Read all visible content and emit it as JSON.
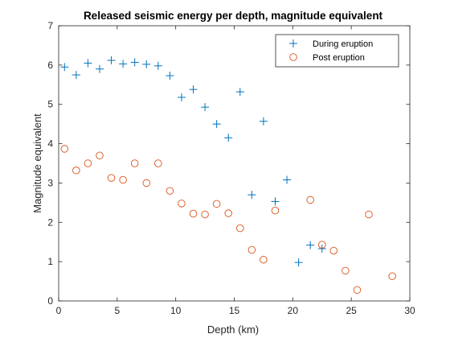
{
  "chart_data": {
    "type": "scatter",
    "title": "Released seismic energy per depth, magnitude equivalent",
    "xlabel": "Depth (km)",
    "ylabel": "Magnitude equivalent",
    "xlim": [
      0,
      30
    ],
    "ylim": [
      0,
      7
    ],
    "xticks": [
      0,
      5,
      10,
      15,
      20,
      25,
      30
    ],
    "yticks": [
      0,
      1,
      2,
      3,
      4,
      5,
      6,
      7
    ],
    "grid": false,
    "legend_position": "top-right",
    "series": [
      {
        "name": "During eruption",
        "marker": "plus",
        "color": "#0072BD",
        "x": [
          0.5,
          1.5,
          2.5,
          3.5,
          4.5,
          5.5,
          6.5,
          7.5,
          8.5,
          9.5,
          10.5,
          11.5,
          12.5,
          13.5,
          14.5,
          15.5,
          16.5,
          17.5,
          18.5,
          19.5,
          20.5,
          21.5,
          22.5
        ],
        "y": [
          5.95,
          5.75,
          6.05,
          5.9,
          6.12,
          6.03,
          6.07,
          6.02,
          5.98,
          5.73,
          5.18,
          5.38,
          4.93,
          4.5,
          4.15,
          5.32,
          2.7,
          4.57,
          2.53,
          3.08,
          0.98,
          1.42,
          1.33
        ]
      },
      {
        "name": "Post eruption",
        "marker": "circle",
        "color": "#D95319",
        "x": [
          0.5,
          1.5,
          2.5,
          3.5,
          4.5,
          5.5,
          6.5,
          7.5,
          8.5,
          9.5,
          10.5,
          11.5,
          12.5,
          13.5,
          14.5,
          15.5,
          16.5,
          17.5,
          18.5,
          21.5,
          22.5,
          23.5,
          24.5,
          25.5,
          26.5,
          28.5
        ],
        "y": [
          3.87,
          3.32,
          3.5,
          3.7,
          3.13,
          3.08,
          3.5,
          3.0,
          3.5,
          2.8,
          2.48,
          2.22,
          2.2,
          2.47,
          2.23,
          1.85,
          1.3,
          1.05,
          2.3,
          2.57,
          1.43,
          1.28,
          0.77,
          0.28,
          2.2,
          0.63
        ]
      }
    ]
  }
}
